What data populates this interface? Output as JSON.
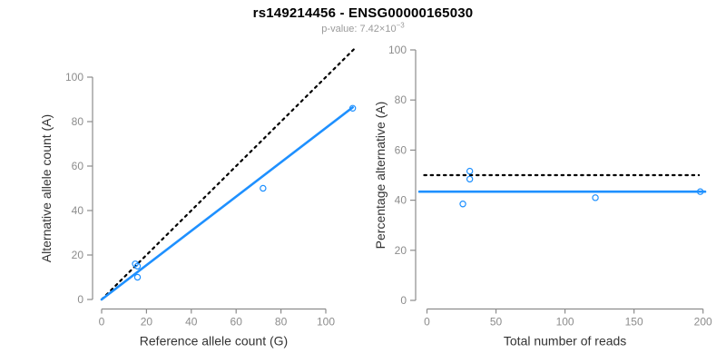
{
  "header": {
    "title": "rs149214456 - ENSG00000165030",
    "subtitle_main": "p-value: 7.42×10",
    "subtitle_exponent": "−3"
  },
  "colors": {
    "accent_blue": "#1E90FF",
    "axis_gray": "#8C8C8C",
    "axis_title_dark": "#333333",
    "reference_black": "#000000",
    "subtitle_gray": "#9a9a9a"
  },
  "chart_data": [
    {
      "type": "scatter",
      "name": "allele-count-panel",
      "title": "rs149214456 - ENSG00000165030",
      "subtitle": "p-value: 7.42×10⁻³",
      "xlabel": "Reference allele count (G)",
      "ylabel": "Alternative allele count (A)",
      "xticks": [
        0,
        20,
        40,
        60,
        80,
        100
      ],
      "yticks": [
        0,
        20,
        40,
        60,
        80,
        100
      ],
      "xlim": [
        0,
        112.5
      ],
      "ylim": [
        0,
        112.5
      ],
      "grid": false,
      "point_color": "#1E90FF",
      "points": [
        [
          15,
          16
        ],
        [
          16,
          15
        ],
        [
          16,
          10
        ],
        [
          72,
          50
        ],
        [
          112,
          86
        ]
      ],
      "lines": [
        {
          "name": "identity-line",
          "style": "dotted",
          "color": "#000000",
          "x1": 0,
          "y1": 0,
          "x2": 112.5,
          "y2": 112.5
        },
        {
          "name": "regression-line",
          "style": "solid",
          "color": "#1E90FF",
          "x1": 0,
          "y1": 0,
          "x2": 112,
          "y2": 86.4
        }
      ]
    },
    {
      "type": "scatter",
      "name": "percentage-panel",
      "xlabel": "Total number of reads",
      "ylabel": "Percentage alternative (A)",
      "xticks": [
        0,
        50,
        100,
        150,
        200
      ],
      "yticks": [
        0,
        20,
        40,
        60,
        80,
        100
      ],
      "xlim": [
        0,
        207
      ],
      "ylim": [
        0,
        104
      ],
      "grid": false,
      "point_color": "#1E90FF",
      "points": [
        [
          26,
          38.5
        ],
        [
          31,
          48.4
        ],
        [
          31,
          51.6
        ],
        [
          122,
          41.0
        ],
        [
          198,
          43.4
        ]
      ],
      "lines": [
        {
          "name": "expected-50pct-line",
          "style": "dotted",
          "color": "#000000",
          "x1": -2,
          "y1": 50,
          "x2": 197,
          "y2": 50
        },
        {
          "name": "mean-percentage-line",
          "style": "solid",
          "color": "#1E90FF",
          "x1": -5.5,
          "y1": 43.4,
          "x2": 201.5,
          "y2": 43.4
        }
      ]
    }
  ]
}
